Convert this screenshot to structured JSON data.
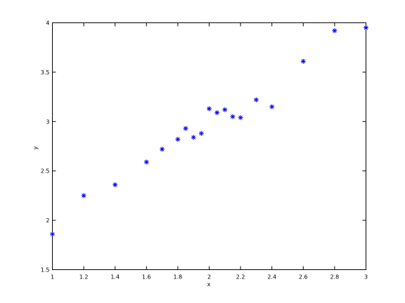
{
  "chart_data": {
    "type": "scatter",
    "title": "",
    "xlabel": "x",
    "ylabel": "y",
    "xlim": [
      1,
      3
    ],
    "ylim": [
      1.5,
      4
    ],
    "xticks": [
      "1",
      "1.2",
      "1.4",
      "1.6",
      "1.8",
      "2",
      "2.2",
      "2.4",
      "2.6",
      "2.8",
      "3"
    ],
    "yticks": [
      "1.5",
      "2",
      "2.5",
      "3",
      "3.5",
      "4"
    ],
    "grid": false,
    "marker": "*",
    "marker_color": "#0000ff",
    "series": [
      {
        "points": [
          {
            "x": 1.0,
            "y": 1.86
          },
          {
            "x": 1.2,
            "y": 2.25
          },
          {
            "x": 1.4,
            "y": 2.36
          },
          {
            "x": 1.6,
            "y": 2.59
          },
          {
            "x": 1.7,
            "y": 2.72
          },
          {
            "x": 1.8,
            "y": 2.82
          },
          {
            "x": 1.85,
            "y": 2.93
          },
          {
            "x": 1.9,
            "y": 2.84
          },
          {
            "x": 1.95,
            "y": 2.88
          },
          {
            "x": 2.0,
            "y": 3.13
          },
          {
            "x": 2.05,
            "y": 3.09
          },
          {
            "x": 2.1,
            "y": 3.12
          },
          {
            "x": 2.15,
            "y": 3.05
          },
          {
            "x": 2.2,
            "y": 3.04
          },
          {
            "x": 2.3,
            "y": 3.22
          },
          {
            "x": 2.4,
            "y": 3.15
          },
          {
            "x": 2.6,
            "y": 3.61
          },
          {
            "x": 2.8,
            "y": 3.92
          },
          {
            "x": 3.0,
            "y": 3.95
          }
        ]
      }
    ]
  }
}
